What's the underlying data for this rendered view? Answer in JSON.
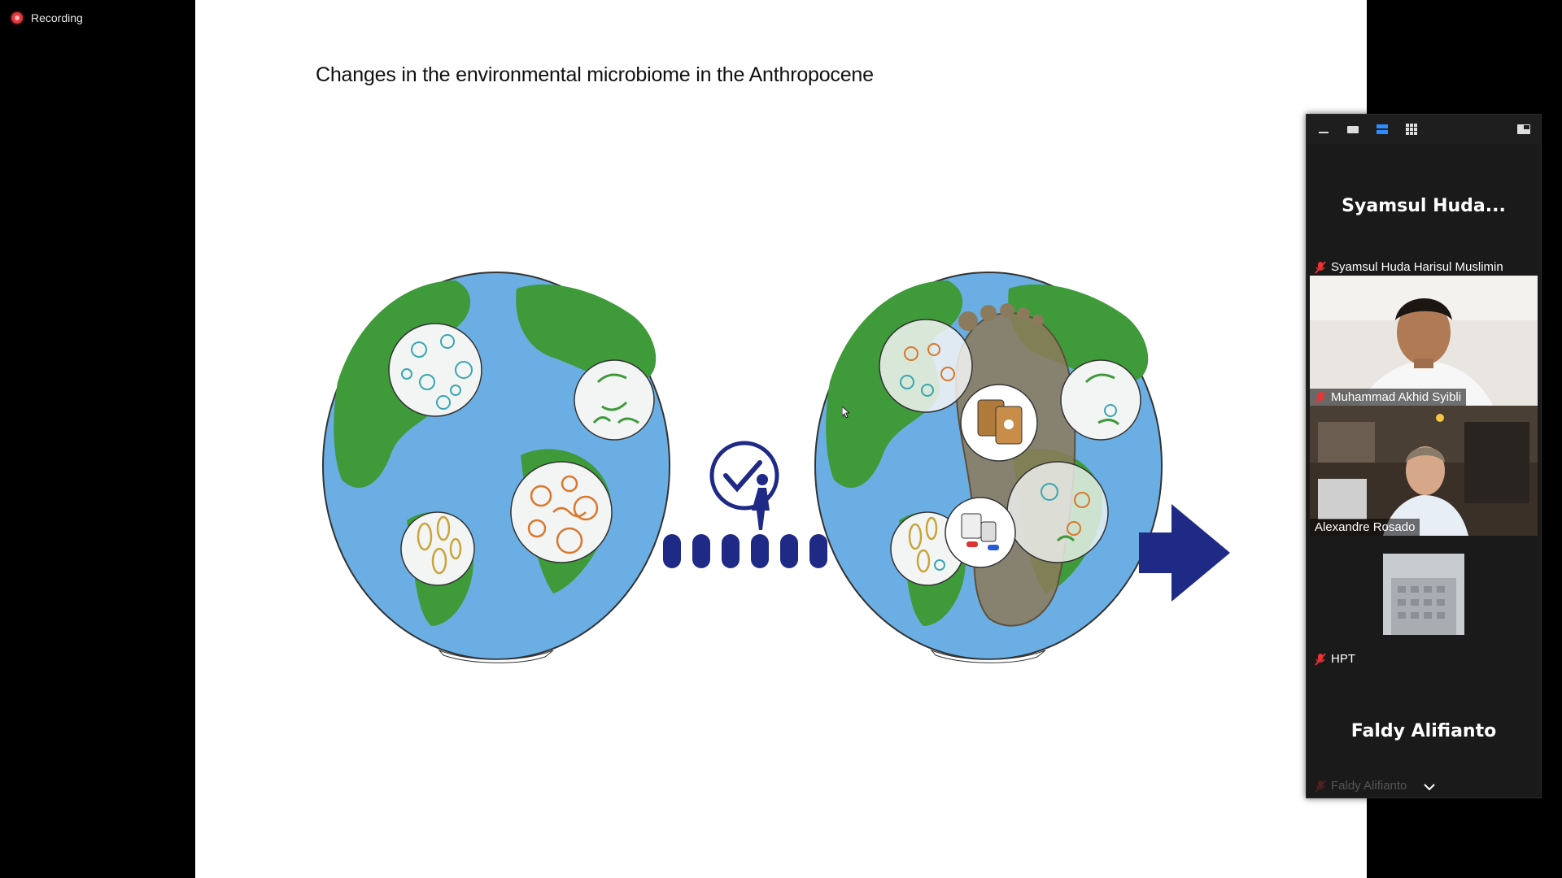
{
  "recording": {
    "label": "Recording",
    "color": "#e0383b"
  },
  "slide": {
    "title": "Changes in the environmental microbiome in the Anthropocene",
    "colors": {
      "ocean": "#6aaee4",
      "land": "#3f9a3a",
      "arrow": "#1f2a87",
      "orange": "#d9782d",
      "teal": "#3aa6b0"
    }
  },
  "gallery": {
    "toolbar": [
      {
        "name": "minimize-icon"
      },
      {
        "name": "speaker-view-icon"
      },
      {
        "name": "strip-view-icon",
        "active": true
      },
      {
        "name": "grid-view-icon"
      },
      {
        "name": "exit-fullscreen-icon"
      }
    ],
    "participants": [
      {
        "display": "Syamsul Huda...",
        "label": "Syamsul Huda Harisul Muslimin",
        "muted": true,
        "video": false
      },
      {
        "label": "Muhammad Akhid Syibli",
        "muted": true,
        "video": true
      },
      {
        "label": "Alexandre Rosado",
        "muted": false,
        "video": true,
        "active_speaker": true
      },
      {
        "label": "HPT",
        "muted": true,
        "video": false,
        "avatar": true
      },
      {
        "display": "Faldy Alifianto",
        "label": "Faldy Alifianto",
        "muted": true,
        "video": false
      }
    ]
  }
}
